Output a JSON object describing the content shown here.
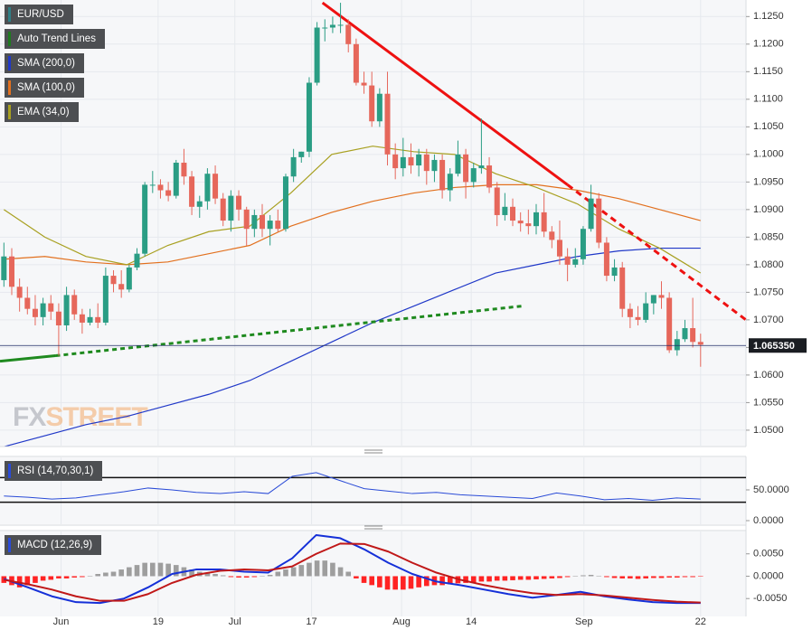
{
  "chart_data": [
    {
      "type": "candlestick",
      "name": "EUR/USD",
      "color": "#2f7f86",
      "up_color": "#2a9d84",
      "down_color": "#e6675b",
      "ohlc": [
        [
          1.0772,
          1.084,
          1.076,
          1.0815
        ],
        [
          1.0815,
          1.083,
          1.0745,
          1.076
        ],
        [
          1.076,
          1.0775,
          1.0715,
          1.074
        ],
        [
          1.074,
          1.076,
          1.071,
          1.072
        ],
        [
          1.072,
          1.0745,
          1.069,
          1.0705
        ],
        [
          1.0705,
          1.074,
          1.069,
          1.073
        ],
        [
          1.073,
          1.0745,
          1.07,
          1.0715
        ],
        [
          1.0715,
          1.073,
          1.0635,
          1.069
        ],
        [
          1.069,
          1.076,
          1.068,
          1.0745
        ],
        [
          1.0745,
          1.0755,
          1.07,
          1.071
        ],
        [
          1.071,
          1.072,
          1.0675,
          1.0695
        ],
        [
          1.0695,
          1.072,
          1.069,
          1.0705
        ],
        [
          1.0705,
          1.073,
          1.0685,
          1.0695
        ],
        [
          1.0695,
          1.0795,
          1.069,
          1.078
        ],
        [
          1.078,
          1.079,
          1.075,
          1.0765
        ],
        [
          1.0765,
          1.079,
          1.074,
          1.0755
        ],
        [
          1.0755,
          1.08,
          1.075,
          1.0795
        ],
        [
          1.0795,
          1.083,
          1.079,
          1.082
        ],
        [
          1.082,
          1.095,
          1.0815,
          1.0945
        ],
        [
          1.0945,
          1.097,
          1.093,
          1.0945
        ],
        [
          1.0945,
          1.0955,
          1.092,
          1.0935
        ],
        [
          1.0935,
          1.095,
          1.0915,
          1.0925
        ],
        [
          1.0925,
          1.099,
          1.092,
          1.0985
        ],
        [
          1.0985,
          1.101,
          1.0945,
          1.096
        ],
        [
          1.096,
          1.097,
          1.089,
          1.0905
        ],
        [
          1.0905,
          1.0925,
          1.0885,
          1.0915
        ],
        [
          1.0915,
          1.0975,
          1.09,
          1.0965
        ],
        [
          1.0965,
          1.098,
          1.091,
          1.092
        ],
        [
          1.092,
          1.093,
          1.087,
          1.088
        ],
        [
          1.088,
          1.0935,
          1.086,
          1.0925
        ],
        [
          1.0925,
          1.0935,
          1.088,
          1.09
        ],
        [
          1.09,
          1.0905,
          1.0835,
          1.0865
        ],
        [
          1.0865,
          1.09,
          1.085,
          1.089
        ],
        [
          1.089,
          1.091,
          1.085,
          1.0865
        ],
        [
          1.0865,
          1.089,
          1.0835,
          1.088
        ],
        [
          1.088,
          1.09,
          1.086,
          1.0865
        ],
        [
          1.0865,
          1.0965,
          1.086,
          1.096
        ],
        [
          1.096,
          1.101,
          1.095,
          1.0995
        ],
        [
          1.0995,
          1.1005,
          1.0985,
          1.1005
        ],
        [
          1.1005,
          1.114,
          1.0995,
          1.113
        ],
        [
          1.113,
          1.124,
          1.1125,
          1.123
        ],
        [
          1.123,
          1.1245,
          1.1205,
          1.123
        ],
        [
          1.123,
          1.125,
          1.122,
          1.1235
        ],
        [
          1.1235,
          1.1275,
          1.122,
          1.1235
        ],
        [
          1.1235,
          1.1245,
          1.1185,
          1.12
        ],
        [
          1.12,
          1.121,
          1.1125,
          1.113
        ],
        [
          1.113,
          1.115,
          1.111,
          1.1125
        ],
        [
          1.1125,
          1.115,
          1.105,
          1.106
        ],
        [
          1.106,
          1.112,
          1.105,
          1.111
        ],
        [
          1.111,
          1.115,
          1.098,
          1.1
        ],
        [
          1.1,
          1.102,
          1.0955,
          1.0975
        ],
        [
          1.0975,
          1.103,
          1.096,
          1.0995
        ],
        [
          1.0995,
          1.102,
          1.0965,
          1.098
        ],
        [
          1.098,
          1.101,
          1.096,
          1.1
        ],
        [
          1.1,
          1.101,
          1.0945,
          1.097
        ],
        [
          1.097,
          1.1,
          1.095,
          1.099
        ],
        [
          1.099,
          1.1,
          1.092,
          1.0935
        ],
        [
          1.0935,
          1.0975,
          1.0915,
          1.0965
        ],
        [
          1.0965,
          1.1025,
          1.096,
          1.1
        ],
        [
          1.1,
          1.101,
          1.092,
          1.095
        ],
        [
          1.095,
          1.0985,
          1.094,
          1.0975
        ],
        [
          1.0975,
          1.1065,
          1.0965,
          1.098
        ],
        [
          1.098,
          1.0995,
          1.093,
          1.094
        ],
        [
          1.094,
          1.095,
          1.087,
          1.089
        ],
        [
          1.089,
          1.093,
          1.088,
          1.0905
        ],
        [
          1.0905,
          1.092,
          1.087,
          1.088
        ],
        [
          1.088,
          1.0895,
          1.086,
          1.0875
        ],
        [
          1.0875,
          1.09,
          1.0855,
          1.087
        ],
        [
          1.087,
          1.091,
          1.0855,
          1.0895
        ],
        [
          1.0895,
          1.093,
          1.085,
          1.086
        ],
        [
          1.086,
          1.087,
          1.083,
          1.0845
        ],
        [
          1.0845,
          1.088,
          1.08,
          1.0815
        ],
        [
          1.0815,
          1.083,
          1.077,
          1.08
        ],
        [
          1.08,
          1.083,
          1.0795,
          1.081
        ],
        [
          1.081,
          1.087,
          1.08,
          1.0865
        ],
        [
          1.0865,
          1.0945,
          1.086,
          1.092
        ],
        [
          1.092,
          1.093,
          1.083,
          1.084
        ],
        [
          1.084,
          1.085,
          1.077,
          1.078
        ],
        [
          1.078,
          1.081,
          1.077,
          1.0795
        ],
        [
          1.0795,
          1.0805,
          1.0705,
          1.072
        ],
        [
          1.072,
          1.073,
          1.0685,
          1.0705
        ],
        [
          1.0705,
          1.0725,
          1.069,
          1.07
        ],
        [
          1.07,
          1.075,
          1.0695,
          1.073
        ],
        [
          1.073,
          1.0745,
          1.071,
          1.0745
        ],
        [
          1.0745,
          1.077,
          1.072,
          1.074
        ],
        [
          1.074,
          1.075,
          1.064,
          1.0645
        ],
        [
          1.0645,
          1.068,
          1.0635,
          1.0665
        ],
        [
          1.0665,
          1.07,
          1.066,
          1.0685
        ],
        [
          1.0685,
          1.074,
          1.065,
          1.066
        ],
        [
          1.066,
          1.0675,
          1.0615,
          1.0655
        ]
      ],
      "trend_lines": {
        "name": "Auto Trend Lines",
        "color": "#1f7a1f",
        "lines": [
          {
            "color": "#ee1111",
            "style": "solid",
            "x": [
              40.7,
              72.0
            ],
            "values": [
              1.1275,
              1.0945
            ]
          },
          {
            "color": "#ee1111",
            "style": "dashed",
            "x": [
              72.0,
              94.8
            ],
            "values": [
              1.0945,
              1.07
            ]
          },
          {
            "color": "#1f8a1f",
            "style": "solid",
            "x": [
              -0.5,
              6.6
            ],
            "values": [
              1.0625,
              1.0635
            ]
          },
          {
            "color": "#1f8a1f",
            "style": "dotted",
            "x": [
              6.6,
              66.2
            ],
            "values": [
              1.0635,
              1.0725
            ]
          }
        ]
      },
      "series": [
        {
          "name": "SMA (200,0)",
          "color": "#2038c8",
          "values": [
            1.047,
            1.049,
            1.051,
            1.0525,
            1.0545,
            1.0565,
            1.059,
            1.0625,
            1.066,
            1.0695,
            1.0725,
            1.0755,
            1.0785,
            1.08,
            1.0815,
            1.0825,
            1.083,
            1.083
          ]
        },
        {
          "name": "SMA (100,0)",
          "color": "#e2701e",
          "values": [
            1.081,
            1.0815,
            1.0805,
            1.08,
            1.0805,
            1.082,
            1.0835,
            1.087,
            1.0895,
            1.0915,
            1.093,
            1.094,
            1.0945,
            1.0945,
            1.0935,
            1.092,
            1.09,
            1.088
          ]
        },
        {
          "name": "EMA (34,0)",
          "color": "#a8a020",
          "values": [
            1.09,
            1.085,
            1.0815,
            1.08,
            1.0835,
            1.086,
            1.087,
            1.093,
            1.1,
            1.1015,
            1.1005,
            1.1,
            1.0965,
            1.094,
            1.091,
            1.0865,
            1.083,
            1.0785
          ]
        }
      ],
      "last_price": {
        "value": 1.06535,
        "label": "1.065350"
      },
      "watermark": [
        "FX",
        "STREET"
      ],
      "ylim": [
        1.0472,
        1.128
      ],
      "yticks": [
        {
          "value": 1.05,
          "label": "1.0500"
        },
        {
          "value": 1.055,
          "label": "1.0550"
        },
        {
          "value": 1.06,
          "label": "1.0600"
        },
        {
          "value": 1.065,
          "label": "1.0650"
        },
        {
          "value": 1.07,
          "label": "1.0700"
        },
        {
          "value": 1.075,
          "label": "1.0750"
        },
        {
          "value": 1.08,
          "label": "1.0800"
        },
        {
          "value": 1.085,
          "label": "1.0850"
        },
        {
          "value": 1.09,
          "label": "1.0900"
        },
        {
          "value": 1.095,
          "label": "1.0950"
        },
        {
          "value": 1.1,
          "label": "1.1000"
        },
        {
          "value": 1.105,
          "label": "1.1050"
        },
        {
          "value": 1.11,
          "label": "1.1100"
        },
        {
          "value": 1.115,
          "label": "1.1150"
        },
        {
          "value": 1.12,
          "label": "1.1200"
        },
        {
          "value": 1.125,
          "label": "1.1250"
        }
      ],
      "xlim": [
        -0.5,
        94.8
      ],
      "xticks": [
        {
          "value": 7.3,
          "label": "Jun"
        },
        {
          "value": 19.7,
          "label": "19"
        },
        {
          "value": 29.5,
          "label": "Jul"
        },
        {
          "value": 39.3,
          "label": "17"
        },
        {
          "value": 50.8,
          "label": "Aug"
        },
        {
          "value": 59.7,
          "label": "14"
        },
        {
          "value": 74.1,
          "label": "Sep"
        },
        {
          "value": 89,
          "label": "22"
        }
      ],
      "grid": true
    },
    {
      "type": "line",
      "name": "RSI (14,70,30,1)",
      "color": "#2a4bd7",
      "values": [
        40,
        38,
        35,
        37,
        42,
        47,
        53,
        50,
        46,
        44,
        47,
        44,
        72,
        78,
        65,
        52,
        48,
        44,
        46,
        42,
        40,
        38,
        36,
        45,
        40,
        34,
        36,
        33,
        37,
        35
      ],
      "levels": [
        70,
        30
      ],
      "ylim": [
        -5.9,
        102.9
      ],
      "yticks": [
        {
          "value": 50,
          "label": "50.0000"
        },
        {
          "value": 0,
          "label": "0.0000"
        }
      ]
    },
    {
      "type": "macd",
      "name": "MACD (12,26,9)",
      "color": "#2a4bd7",
      "histogram": {
        "up_color": "#9e9e9e",
        "down_color": "#ff2323",
        "values": [
          -0.0015,
          -0.002,
          -0.0025,
          -0.002,
          -0.0015,
          -0.001,
          -0.0008,
          -0.0005,
          -0.0005,
          -0.0003,
          -0.0002,
          0,
          0.0005,
          0.0008,
          0.001,
          0.0015,
          0.002,
          0.0025,
          0.003,
          0.003,
          0.003,
          0.0028,
          0.0025,
          0.002,
          0.0015,
          0.001,
          0.0008,
          0.0005,
          0.0002,
          -0.0002,
          -0.0003,
          -0.0003,
          -0.0002,
          0.0001,
          0.0003,
          0.001,
          0.0015,
          0.002,
          0.0025,
          0.003,
          0.0035,
          0.0035,
          0.003,
          0.002,
          0.001,
          -0.0005,
          -0.0015,
          -0.002,
          -0.0025,
          -0.003,
          -0.003,
          -0.003,
          -0.0028,
          -0.0025,
          -0.0022,
          -0.002,
          -0.002,
          -0.0018,
          -0.0016,
          -0.0015,
          -0.0014,
          -0.0012,
          -0.0012,
          -0.001,
          -0.001,
          -0.0009,
          -0.0008,
          -0.0008,
          -0.0007,
          -0.0006,
          -0.0005,
          -0.0004,
          -0.0002,
          0,
          0.0002,
          0.0003,
          0.0001,
          -0.0002,
          -0.0004,
          -0.0005,
          -0.0005,
          -0.0006,
          -0.0005,
          -0.0004,
          -0.0004,
          -0.0003,
          -0.0003,
          -0.0002,
          -0.0002,
          -0.0001
        ]
      },
      "series": [
        {
          "color": "#1530d8",
          "values": [
            -0.0006,
            -0.0025,
            -0.0045,
            -0.0058,
            -0.006,
            -0.005,
            -0.0025,
            0.0005,
            0.0015,
            0.0015,
            0.001,
            0.0008,
            0.004,
            0.0092,
            0.0085,
            0.006,
            0.003,
            0.0005,
            -0.0012,
            -0.002,
            -0.003,
            -0.004,
            -0.0048,
            -0.0042,
            -0.0035,
            -0.0045,
            -0.0052,
            -0.0058,
            -0.006,
            -0.006
          ]
        },
        {
          "color": "#c01818",
          "values": [
            -0.0008,
            -0.0018,
            -0.003,
            -0.0045,
            -0.0055,
            -0.0055,
            -0.004,
            -0.0015,
            0.0003,
            0.0012,
            0.0015,
            0.0013,
            0.0022,
            0.005,
            0.0073,
            0.0072,
            0.0055,
            0.003,
            0.0008,
            -0.0008,
            -0.002,
            -0.003,
            -0.0038,
            -0.0042,
            -0.004,
            -0.0043,
            -0.0048,
            -0.0053,
            -0.0057,
            -0.0059
          ]
        }
      ],
      "ylim": [
        -0.009,
        0.01
      ],
      "yticks": [
        {
          "value": 0.005,
          "label": "0.0050"
        },
        {
          "value": 0,
          "label": "0.0000"
        },
        {
          "value": -0.005,
          "label": "-0.0050"
        }
      ]
    }
  ]
}
